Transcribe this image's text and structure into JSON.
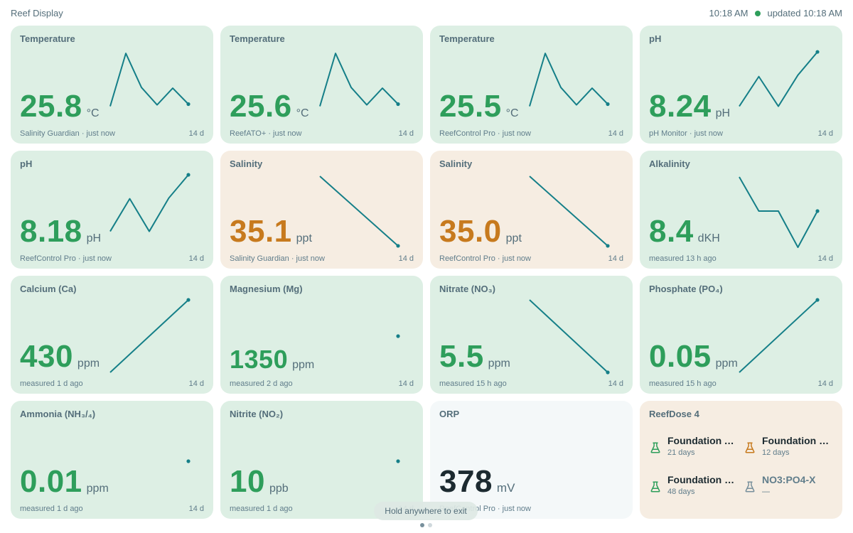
{
  "app": {
    "title": "Reef Display",
    "time": "10:18 AM",
    "updated": "updated 10:18 AM",
    "status_color": "#2e9e5b"
  },
  "cards": [
    {
      "title": "Temperature",
      "value": "25.8",
      "unit": "°C",
      "source": "Salinity Guardian · just now",
      "range": "14 d",
      "status": "ok",
      "spark": [
        22,
        95,
        48,
        24,
        47,
        25
      ]
    },
    {
      "title": "Temperature",
      "value": "25.6",
      "unit": "°C",
      "source": "ReefATO+ · just now",
      "range": "14 d",
      "status": "ok",
      "spark": [
        22,
        95,
        48,
        24,
        47,
        25
      ]
    },
    {
      "title": "Temperature",
      "value": "25.5",
      "unit": "°C",
      "source": "ReefControl Pro · just now",
      "range": "14 d",
      "status": "ok",
      "spark": [
        22,
        95,
        48,
        24,
        47,
        25
      ]
    },
    {
      "title": "pH",
      "value": "8.24",
      "unit": "pH",
      "source": "pH Monitor · just now",
      "range": "14 d",
      "status": "ok",
      "spark": [
        22,
        63,
        22,
        65,
        97
      ]
    },
    {
      "title": "pH",
      "value": "8.18",
      "unit": "pH",
      "source": "ReefControl Pro · just now",
      "range": "14 d",
      "status": "ok",
      "spark": [
        22,
        67,
        22,
        68,
        100
      ]
    },
    {
      "title": "Salinity",
      "value": "35.1",
      "unit": "ppt",
      "source": "Salinity Guardian · just now",
      "range": "14 d",
      "status": "warn",
      "spark": [
        98,
        2
      ]
    },
    {
      "title": "Salinity",
      "value": "35.0",
      "unit": "ppt",
      "source": "ReefControl Pro · just now",
      "range": "14 d",
      "status": "warn",
      "spark": [
        98,
        2
      ]
    },
    {
      "title": "Alkalinity",
      "value": "8.4",
      "unit": "dKH",
      "source": "measured 13 h ago",
      "range": "14 d",
      "status": "ok",
      "spark": [
        97,
        50,
        50,
        0,
        50
      ]
    },
    {
      "title": "Calcium (Ca)",
      "value": "430",
      "unit": "ppm",
      "source": "measured 1 d ago",
      "range": "14 d",
      "status": "ok",
      "spark": [
        0,
        100
      ]
    },
    {
      "title": "Magnesium (Mg)",
      "value": "1350",
      "unit": "ppm",
      "source": "measured 2 d ago",
      "range": "14 d",
      "status": "ok",
      "spark": [
        50
      ]
    },
    {
      "title": "Nitrate (NO₃)",
      "value": "5.5",
      "unit": "ppm",
      "source": "measured 15 h ago",
      "range": "14 d",
      "status": "ok",
      "spark": [
        100,
        0
      ]
    },
    {
      "title": "Phosphate (PO₄)",
      "value": "0.05",
      "unit": "ppm",
      "source": "measured 15 h ago",
      "range": "14 d",
      "status": "ok",
      "spark": [
        0,
        100
      ]
    },
    {
      "title": "Ammonia (NH₃/₄)",
      "value": "0.01",
      "unit": "ppm",
      "source": "measured 1 d ago",
      "range": "14 d",
      "status": "ok",
      "spark": [
        50
      ]
    },
    {
      "title": "Nitrite (NO₂)",
      "value": "10",
      "unit": "ppb",
      "source": "measured 1 d ago",
      "range": "14 d",
      "status": "ok",
      "spark": [
        50
      ]
    },
    {
      "title": "ORP",
      "value": "378",
      "unit": "mV",
      "source": "ReefControl Pro · just now",
      "range": "",
      "status": "neutral",
      "spark": []
    }
  ],
  "doser": {
    "title": "ReefDose 4",
    "items": [
      {
        "name": "Foundation A...",
        "sub": "21 days",
        "color": "#2e9e5b",
        "muted": false
      },
      {
        "name": "Foundation B...",
        "sub": "12 days",
        "color": "#c77a1e",
        "muted": false
      },
      {
        "name": "Foundation C...",
        "sub": "48 days",
        "color": "#2e9e5b",
        "muted": false
      },
      {
        "name": "NO3:PO4-X",
        "sub": "—",
        "color": "#78909c",
        "muted": true
      }
    ]
  },
  "exit_hint": "Hold anywhere to exit",
  "pager": {
    "pages": 2,
    "active": 0,
    "active_color": "#78909c",
    "inactive_color": "#cfd8dc"
  }
}
